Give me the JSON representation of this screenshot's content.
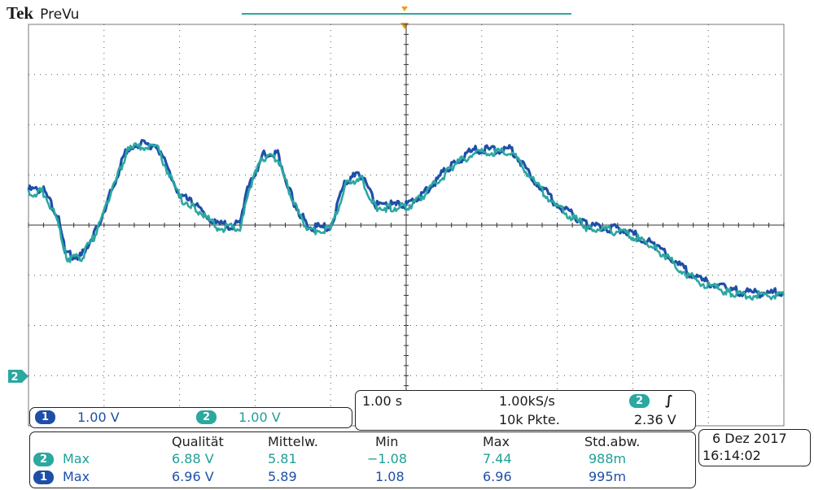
{
  "brand": {
    "name": "Tek",
    "mode": "PreVu"
  },
  "marker_labels": {
    "ch2_ground": "2"
  },
  "channels": [
    {
      "number": "1",
      "scale": "1.00 V",
      "color": "#1e4fa8"
    },
    {
      "number": "2",
      "scale": "1.00 V",
      "color": "#2ba8a0"
    }
  ],
  "timebase": {
    "time_per_div": "1.00 s",
    "sample_rate": "1.00kS/s",
    "record_length": "10k Pkte."
  },
  "trigger": {
    "source": "2",
    "slope_icon": "rising-edge-icon",
    "slope_glyph": "∫",
    "level": "2.36 V"
  },
  "measurements": {
    "headers": [
      "Qualität",
      "Mittelw.",
      "Min",
      "Max",
      "Std.abw."
    ],
    "rows": [
      {
        "channel": "2",
        "label": "Max",
        "values": [
          "6.88 V",
          "5.81",
          "−1.08",
          "7.44",
          "988m"
        ]
      },
      {
        "channel": "1",
        "label": "Max",
        "values": [
          "6.96 V",
          "5.89",
          "1.08",
          "6.96",
          "995m"
        ]
      }
    ]
  },
  "datetime": {
    "date": "6 Dez 2017",
    "time": "16:14:02"
  },
  "colors": {
    "ch1": "#1e4fa8",
    "ch2": "#2ba8a0",
    "trigger_marker": "#f39c12",
    "graticule": "#444444"
  },
  "chart_data": {
    "type": "line",
    "x_unit": "divisions",
    "y_unit": "divisions",
    "xlim": [
      -5,
      5
    ],
    "ylim": [
      -4,
      4
    ],
    "series": [
      {
        "color": "#1e4fa8",
        "points": [
          [
            -5,
            0.7
          ],
          [
            -4.8,
            0.7
          ],
          [
            -4.6,
            0.1
          ],
          [
            -4.5,
            -0.6
          ],
          [
            -4.3,
            -0.6
          ],
          [
            -4.1,
            -0.1
          ],
          [
            -3.9,
            0.7
          ],
          [
            -3.7,
            1.5
          ],
          [
            -3.6,
            1.6
          ],
          [
            -3.3,
            1.6
          ],
          [
            -3.0,
            0.6
          ],
          [
            -2.8,
            0.4
          ],
          [
            -2.5,
            0.0
          ],
          [
            -2.2,
            0.0
          ],
          [
            -2.1,
            0.7
          ],
          [
            -1.9,
            1.4
          ],
          [
            -1.7,
            1.4
          ],
          [
            -1.5,
            0.5
          ],
          [
            -1.3,
            -0.05
          ],
          [
            -1.0,
            -0.05
          ],
          [
            -0.8,
            0.9
          ],
          [
            -0.6,
            1.0
          ],
          [
            -0.4,
            0.4
          ],
          [
            -0.2,
            0.4
          ],
          [
            0.0,
            0.4
          ],
          [
            0.2,
            0.6
          ],
          [
            0.6,
            1.2
          ],
          [
            0.9,
            1.5
          ],
          [
            1.4,
            1.5
          ],
          [
            1.7,
            0.9
          ],
          [
            2.0,
            0.4
          ],
          [
            2.4,
            0.0
          ],
          [
            2.9,
            -0.1
          ],
          [
            3.3,
            -0.4
          ],
          [
            3.6,
            -0.8
          ],
          [
            3.9,
            -1.1
          ],
          [
            4.3,
            -1.3
          ],
          [
            4.6,
            -1.35
          ],
          [
            5.0,
            -1.35
          ]
        ]
      },
      {
        "color": "#2ba8a0",
        "points": [
          [
            -5,
            0.65
          ],
          [
            -4.8,
            0.65
          ],
          [
            -4.6,
            0.05
          ],
          [
            -4.5,
            -0.65
          ],
          [
            -4.3,
            -0.65
          ],
          [
            -4.1,
            -0.15
          ],
          [
            -3.9,
            0.65
          ],
          [
            -3.7,
            1.45
          ],
          [
            -3.6,
            1.55
          ],
          [
            -3.3,
            1.55
          ],
          [
            -3.0,
            0.55
          ],
          [
            -2.8,
            0.35
          ],
          [
            -2.5,
            -0.05
          ],
          [
            -2.2,
            -0.05
          ],
          [
            -2.1,
            0.65
          ],
          [
            -1.9,
            1.35
          ],
          [
            -1.7,
            1.35
          ],
          [
            -1.5,
            0.45
          ],
          [
            -1.3,
            -0.1
          ],
          [
            -1.0,
            -0.1
          ],
          [
            -0.8,
            0.85
          ],
          [
            -0.6,
            0.95
          ],
          [
            -0.4,
            0.35
          ],
          [
            -0.2,
            0.35
          ],
          [
            0.0,
            0.35
          ],
          [
            0.2,
            0.55
          ],
          [
            0.6,
            1.15
          ],
          [
            0.9,
            1.45
          ],
          [
            1.4,
            1.45
          ],
          [
            1.7,
            0.85
          ],
          [
            2.0,
            0.35
          ],
          [
            2.4,
            -0.05
          ],
          [
            2.9,
            -0.15
          ],
          [
            3.3,
            -0.45
          ],
          [
            3.6,
            -0.85
          ],
          [
            3.9,
            -1.15
          ],
          [
            4.3,
            -1.35
          ],
          [
            4.6,
            -1.4
          ],
          [
            5.0,
            -1.4
          ]
        ]
      }
    ]
  }
}
